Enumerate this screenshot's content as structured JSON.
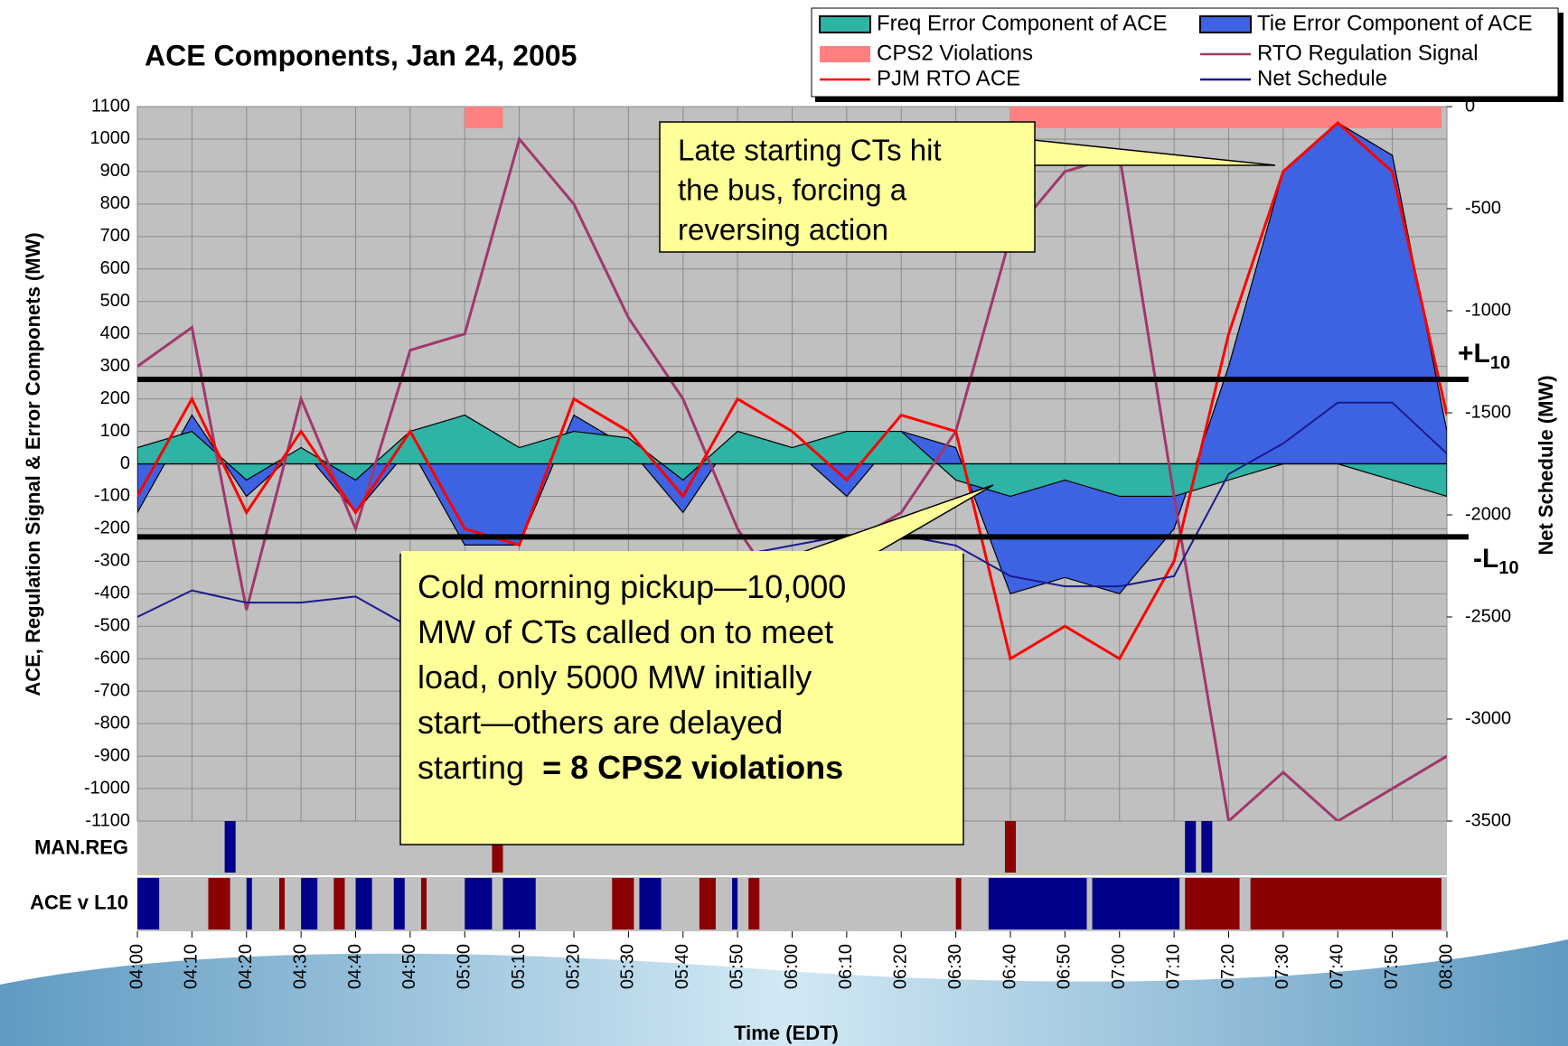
{
  "chart_data": {
    "type": "line",
    "title": "ACE Components, Jan 24, 2005",
    "x_label": "Time (EDT)",
    "y_label": "ACE, Regulation Signal & Error Componets (MW)",
    "y2_label": "Net Schedule (MW)",
    "x": [
      "04:00",
      "04:10",
      "04:20",
      "04:30",
      "04:40",
      "04:50",
      "05:00",
      "05:10",
      "05:20",
      "05:30",
      "05:40",
      "05:50",
      "06:00",
      "06:10",
      "06:20",
      "06:30",
      "06:40",
      "06:50",
      "07:00",
      "07:10",
      "07:20",
      "07:30",
      "07:40",
      "07:50",
      "08:00"
    ],
    "ylim": [
      -1100,
      1100
    ],
    "yticks": [
      -1100,
      -1000,
      -900,
      -800,
      -700,
      -600,
      -500,
      -400,
      -300,
      -200,
      -100,
      0,
      100,
      200,
      300,
      400,
      500,
      600,
      700,
      800,
      900,
      1000,
      1100
    ],
    "y2lim": [
      -3500,
      0
    ],
    "y2ticks": [
      -3500,
      -3000,
      -2500,
      -2000,
      -1500,
      -1000,
      -500,
      0
    ],
    "grid": true,
    "series": [
      {
        "name": "Tie Error Component of ACE",
        "style": "area",
        "color": "#3d63e3",
        "values": [
          -150,
          150,
          -100,
          50,
          -150,
          50,
          -250,
          -250,
          150,
          50,
          -150,
          100,
          50,
          -100,
          100,
          50,
          -400,
          -350,
          -400,
          -200,
          300,
          900,
          1050,
          950,
          100
        ]
      },
      {
        "name": "Freq Error Component of ACE",
        "style": "area",
        "color": "#2fb3a4",
        "values": [
          50,
          100,
          -50,
          50,
          -50,
          100,
          150,
          50,
          100,
          80,
          -50,
          100,
          50,
          100,
          100,
          -50,
          -100,
          -50,
          -100,
          -100,
          -50,
          0,
          0,
          -50,
          -100
        ]
      },
      {
        "name": "RTO Regulation Signal",
        "style": "line",
        "color": "#a0386c",
        "values": [
          300,
          420,
          -450,
          200,
          -200,
          350,
          400,
          1000,
          800,
          450,
          200,
          -200,
          -450,
          -250,
          -150,
          100,
          700,
          900,
          950,
          -100,
          -1100,
          -950,
          -1100,
          -1000,
          -900
        ]
      },
      {
        "name": "PJM RTO ACE",
        "style": "line",
        "color": "#ff0000",
        "values": [
          -100,
          200,
          -150,
          100,
          -150,
          100,
          -200,
          -250,
          200,
          100,
          -100,
          200,
          100,
          -50,
          150,
          100,
          -600,
          -500,
          -600,
          -300,
          400,
          900,
          1050,
          900,
          150
        ]
      },
      {
        "name": "Net Schedule",
        "style": "line",
        "color": "#1a1a8c",
        "axis": "y2",
        "values": [
          -2500,
          -2370,
          -2430,
          -2430,
          -2400,
          -2550,
          -2500,
          -2450,
          -2400,
          -2350,
          -2300,
          -2200,
          -2150,
          -2100,
          -2100,
          -2150,
          -2300,
          -2350,
          -2350,
          -2300,
          -1800,
          -1650,
          -1450,
          -1450,
          -1700
        ]
      }
    ],
    "bands": {
      "name": "CPS2 Violations",
      "color": "#ff8080",
      "spans": [
        [
          "05:00",
          "05:07"
        ],
        [
          "06:40",
          "07:59"
        ]
      ]
    },
    "limits": [
      {
        "value": 260,
        "label": "+L",
        "sub": "10"
      },
      {
        "value": -225,
        "label": "-L",
        "sub": "10"
      }
    ],
    "strips": [
      {
        "label": "MAN.REG",
        "spans": [
          {
            "from": "04:16",
            "to": "04:18",
            "color": "#00008b"
          },
          {
            "from": "05:05",
            "to": "05:07",
            "color": "#8b0000"
          },
          {
            "from": "06:39",
            "to": "06:41",
            "color": "#8b0000"
          },
          {
            "from": "07:12",
            "to": "07:14",
            "color": "#00008b"
          },
          {
            "from": "07:15",
            "to": "07:17",
            "color": "#00008b"
          }
        ]
      },
      {
        "label": "ACE v L10",
        "spans": [
          {
            "from": "04:00",
            "to": "04:04",
            "color": "#00008b"
          },
          {
            "from": "04:13",
            "to": "04:17",
            "color": "#8b0000"
          },
          {
            "from": "04:20",
            "to": "04:21",
            "color": "#00008b"
          },
          {
            "from": "04:26",
            "to": "04:27",
            "color": "#8b0000"
          },
          {
            "from": "04:30",
            "to": "04:33",
            "color": "#00008b"
          },
          {
            "from": "04:36",
            "to": "04:38",
            "color": "#8b0000"
          },
          {
            "from": "04:40",
            "to": "04:43",
            "color": "#00008b"
          },
          {
            "from": "04:47",
            "to": "04:49",
            "color": "#00008b"
          },
          {
            "from": "04:52",
            "to": "04:53",
            "color": "#8b0000"
          },
          {
            "from": "05:00",
            "to": "05:05",
            "color": "#00008b"
          },
          {
            "from": "05:07",
            "to": "05:13",
            "color": "#00008b"
          },
          {
            "from": "05:27",
            "to": "05:31",
            "color": "#8b0000"
          },
          {
            "from": "05:32",
            "to": "05:36",
            "color": "#00008b"
          },
          {
            "from": "05:43",
            "to": "05:46",
            "color": "#8b0000"
          },
          {
            "from": "05:49",
            "to": "05:50",
            "color": "#00008b"
          },
          {
            "from": "05:52",
            "to": "05:54",
            "color": "#8b0000"
          },
          {
            "from": "06:30",
            "to": "06:31",
            "color": "#8b0000"
          },
          {
            "from": "06:36",
            "to": "06:54",
            "color": "#00008b"
          },
          {
            "from": "06:55",
            "to": "07:11",
            "color": "#00008b"
          },
          {
            "from": "07:12",
            "to": "07:22",
            "color": "#8b0000"
          },
          {
            "from": "07:24",
            "to": "07:59",
            "color": "#8b0000"
          }
        ]
      }
    ],
    "annotations": [
      {
        "lines": [
          "Late starting CTs hit",
          "the bus, forcing a",
          "reversing action"
        ]
      },
      {
        "lines": [
          "Cold morning pickup—10,000",
          "MW of CTs called on to meet",
          "load, only 5000 MW initially",
          "start—others are delayed",
          "starting "
        ],
        "bold": "= 8 CPS2 violations"
      }
    ]
  }
}
